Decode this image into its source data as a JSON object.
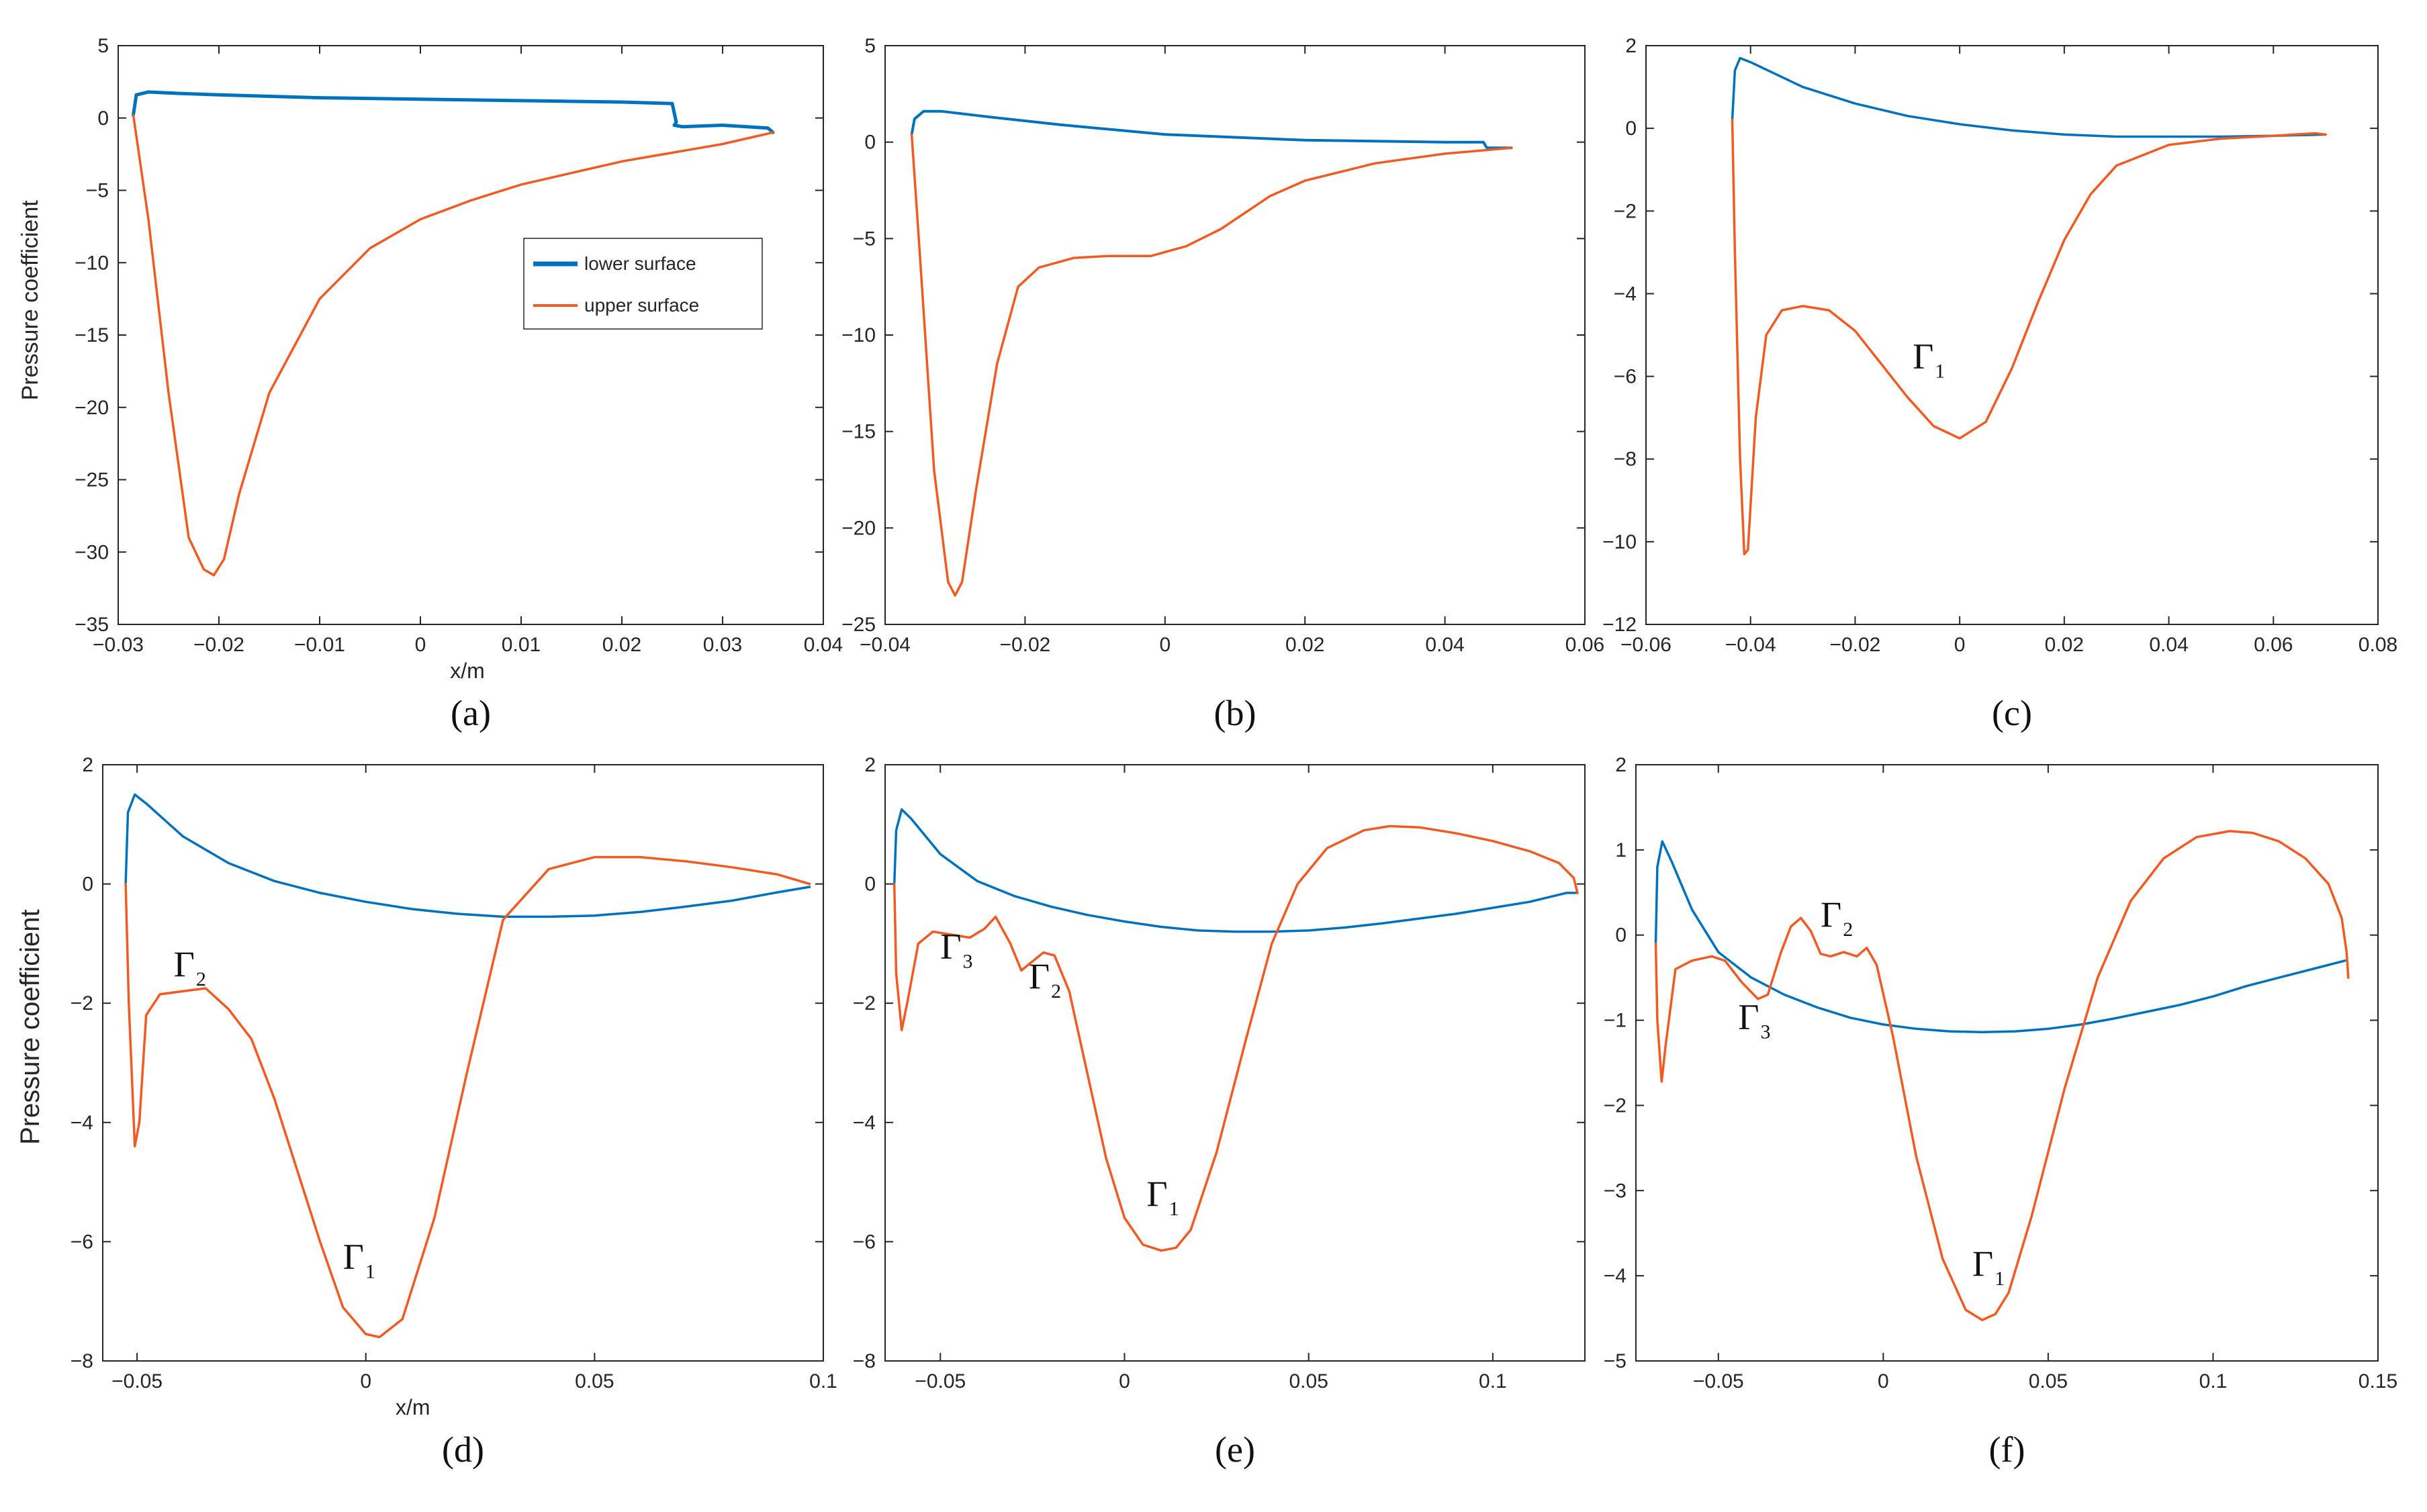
{
  "colors": {
    "lower": "#0072BD",
    "upper": "#F15A22",
    "axis": "#262626"
  },
  "chart_data": [
    {
      "id": "a",
      "type": "line",
      "panel_label": "(a)",
      "xlabel": "x/m",
      "ylabel": "Pressure coefficient",
      "xlim": [
        -0.03,
        0.04
      ],
      "ylim": [
        -35,
        5
      ],
      "xticks": [
        -0.03,
        -0.02,
        -0.01,
        0,
        0.01,
        0.02,
        0.03,
        0.04
      ],
      "xtick_labels": [
        "-0.03",
        "-0.02",
        "-0.01",
        "0",
        "0.01",
        "0.02",
        "0.03",
        "0.04"
      ],
      "yticks": [
        5,
        0,
        -5,
        -10,
        -15,
        -20,
        -25,
        -30,
        -35
      ],
      "ytick_labels": [
        "5",
        "0",
        "-5",
        "-10",
        "-15",
        "-20",
        "-25",
        "-30",
        "-35"
      ],
      "legend": [
        "lower surface",
        "upper surface"
      ],
      "series": [
        {
          "name": "lower surface",
          "color": "lower",
          "width": 5,
          "x": [
            -0.0285,
            -0.0282,
            -0.027,
            -0.024,
            -0.02,
            -0.01,
            0,
            0.01,
            0.02,
            0.025,
            0.0254,
            0.0252,
            0.026,
            0.03,
            0.0345,
            0.035
          ],
          "y": [
            0.2,
            1.6,
            1.8,
            1.7,
            1.6,
            1.4,
            1.3,
            1.2,
            1.1,
            1.0,
            -0.3,
            -0.5,
            -0.6,
            -0.5,
            -0.7,
            -1.0
          ]
        },
        {
          "name": "upper surface",
          "color": "upper",
          "width": 3.5,
          "x": [
            -0.0285,
            -0.027,
            -0.025,
            -0.023,
            -0.0215,
            -0.0205,
            -0.0195,
            -0.018,
            -0.015,
            -0.01,
            -0.005,
            0,
            0.005,
            0.01,
            0.02,
            0.03,
            0.035
          ],
          "y": [
            0.2,
            -7,
            -19,
            -29,
            -31.2,
            -31.6,
            -30.5,
            -26,
            -19,
            -12.5,
            -9,
            -7,
            -5.7,
            -4.6,
            -3,
            -1.8,
            -1.0
          ]
        }
      ]
    },
    {
      "id": "b",
      "type": "line",
      "panel_label": "(b)",
      "xlabel": "",
      "ylabel": "",
      "xlim": [
        -0.04,
        0.06
      ],
      "ylim": [
        -25,
        5
      ],
      "xticks": [
        -0.04,
        -0.02,
        0,
        0.02,
        0.04,
        0.06
      ],
      "xtick_labels": [
        "-0.04",
        "-0.02",
        "0",
        "0.02",
        "0.04",
        "0.06"
      ],
      "yticks": [
        5,
        0,
        -5,
        -10,
        -15,
        -20,
        -25
      ],
      "ytick_labels": [
        "5",
        "0",
        "-5",
        "-10",
        "-15",
        "-20",
        "-25"
      ],
      "series": [
        {
          "name": "lower surface",
          "color": "lower",
          "width": 4,
          "x": [
            -0.0362,
            -0.0358,
            -0.0345,
            -0.032,
            -0.025,
            -0.015,
            0,
            0.02,
            0.04,
            0.0455,
            0.046,
            0.0495
          ],
          "y": [
            0.4,
            1.2,
            1.6,
            1.6,
            1.3,
            0.9,
            0.4,
            0.1,
            0.0,
            0.0,
            -0.3,
            -0.3
          ]
        },
        {
          "name": "upper surface",
          "color": "upper",
          "width": 3.5,
          "x": [
            -0.0362,
            -0.035,
            -0.033,
            -0.031,
            -0.03,
            -0.029,
            -0.027,
            -0.024,
            -0.021,
            -0.018,
            -0.013,
            -0.008,
            -0.002,
            0.003,
            0.008,
            0.015,
            0.02,
            0.03,
            0.04,
            0.0495
          ],
          "y": [
            0.4,
            -6,
            -17,
            -22.8,
            -23.5,
            -22.8,
            -18,
            -11.5,
            -7.5,
            -6.5,
            -6.0,
            -5.9,
            -5.9,
            -5.4,
            -4.5,
            -2.8,
            -2.0,
            -1.1,
            -0.6,
            -0.3
          ]
        }
      ]
    },
    {
      "id": "c",
      "type": "line",
      "panel_label": "(c)",
      "xlabel": "",
      "ylabel": "",
      "xlim": [
        -0.06,
        0.08
      ],
      "ylim": [
        -12,
        2
      ],
      "xticks": [
        -0.06,
        -0.04,
        -0.02,
        0,
        0.02,
        0.04,
        0.06,
        0.08
      ],
      "xtick_labels": [
        "-0.06",
        "-0.04",
        "-0.02",
        "0",
        "0.02",
        "0.04",
        "0.06",
        "0.08"
      ],
      "yticks": [
        2,
        0,
        -2,
        -4,
        -6,
        -8,
        -10,
        -12
      ],
      "ytick_labels": [
        "2",
        "0",
        "-2",
        "-4",
        "-6",
        "-8",
        "-10",
        "-12"
      ],
      "annotations": [
        {
          "label": "Γ",
          "sub": "1",
          "x": -0.009,
          "y": -5.8
        }
      ],
      "series": [
        {
          "name": "lower surface",
          "color": "lower",
          "width": 3.5,
          "x": [
            -0.0435,
            -0.043,
            -0.042,
            -0.04,
            -0.035,
            -0.03,
            -0.02,
            -0.01,
            0,
            0.01,
            0.02,
            0.03,
            0.04,
            0.05,
            0.06,
            0.07
          ],
          "y": [
            0.2,
            1.4,
            1.7,
            1.6,
            1.3,
            1.0,
            0.6,
            0.3,
            0.1,
            -0.05,
            -0.15,
            -0.2,
            -0.2,
            -0.2,
            -0.18,
            -0.15
          ]
        },
        {
          "name": "upper surface",
          "color": "upper",
          "width": 3.5,
          "x": [
            -0.0435,
            -0.043,
            -0.042,
            -0.0412,
            -0.0405,
            -0.039,
            -0.037,
            -0.034,
            -0.03,
            -0.025,
            -0.02,
            -0.015,
            -0.01,
            -0.005,
            0,
            0.005,
            0.01,
            0.015,
            0.02,
            0.025,
            0.03,
            0.04,
            0.05,
            0.06,
            0.068,
            0.07
          ],
          "y": [
            0.2,
            -3,
            -8,
            -10.3,
            -10.2,
            -7,
            -5,
            -4.4,
            -4.3,
            -4.4,
            -4.9,
            -5.7,
            -6.5,
            -7.2,
            -7.5,
            -7.1,
            -5.8,
            -4.2,
            -2.7,
            -1.6,
            -0.9,
            -0.4,
            -0.25,
            -0.18,
            -0.12,
            -0.15
          ]
        }
      ]
    },
    {
      "id": "d",
      "type": "line",
      "panel_label": "(d)",
      "xlabel": "x/m",
      "ylabel": "Pressure coefficient",
      "xlim": [
        -0.0575,
        0.1
      ],
      "ylim": [
        -8,
        2
      ],
      "xticks": [
        -0.05,
        0,
        0.05,
        0.1
      ],
      "xtick_labels": [
        "-0.05",
        "0",
        "0.05",
        "0.1"
      ],
      "yticks": [
        2,
        0,
        -2,
        -4,
        -6,
        -8
      ],
      "ytick_labels": [
        "2",
        "0",
        "-2",
        "-4",
        "-6",
        "-8"
      ],
      "annotations": [
        {
          "label": "Γ",
          "sub": "2",
          "x": -0.042,
          "y": -1.55
        },
        {
          "label": "Γ",
          "sub": "1",
          "x": -0.005,
          "y": -6.45
        }
      ],
      "series": [
        {
          "name": "lower surface",
          "color": "lower",
          "width": 3.5,
          "x": [
            -0.0525,
            -0.052,
            -0.0505,
            -0.048,
            -0.04,
            -0.03,
            -0.02,
            -0.01,
            0,
            0.01,
            0.02,
            0.03,
            0.04,
            0.05,
            0.06,
            0.07,
            0.08,
            0.09,
            0.097
          ],
          "y": [
            0.0,
            1.2,
            1.5,
            1.35,
            0.8,
            0.35,
            0.05,
            -0.15,
            -0.3,
            -0.42,
            -0.5,
            -0.55,
            -0.55,
            -0.53,
            -0.47,
            -0.38,
            -0.28,
            -0.14,
            -0.05
          ]
        },
        {
          "name": "upper surface",
          "color": "upper",
          "width": 3.5,
          "x": [
            -0.0525,
            -0.0518,
            -0.0505,
            -0.0495,
            -0.048,
            -0.045,
            -0.04,
            -0.035,
            -0.03,
            -0.025,
            -0.02,
            -0.015,
            -0.01,
            -0.005,
            0,
            0.003,
            0.008,
            0.015,
            0.022,
            0.03,
            0.04,
            0.05,
            0.06,
            0.07,
            0.08,
            0.09,
            0.097
          ],
          "y": [
            0.0,
            -2.0,
            -4.4,
            -4.0,
            -2.2,
            -1.85,
            -1.8,
            -1.75,
            -2.1,
            -2.6,
            -3.6,
            -4.8,
            -6.0,
            -7.1,
            -7.55,
            -7.6,
            -7.3,
            -5.6,
            -3.2,
            -0.6,
            0.25,
            0.45,
            0.45,
            0.38,
            0.28,
            0.16,
            0.0
          ]
        }
      ]
    },
    {
      "id": "e",
      "type": "line",
      "panel_label": "(e)",
      "xlabel": "",
      "ylabel": "",
      "xlim": [
        -0.065,
        0.125
      ],
      "ylim": [
        -8,
        2
      ],
      "xticks": [
        -0.05,
        0,
        0.05,
        0.1
      ],
      "xtick_labels": [
        "-0.05",
        "0",
        "0.05",
        "0.1"
      ],
      "yticks": [
        2,
        0,
        -2,
        -4,
        -6,
        -8
      ],
      "ytick_labels": [
        "2",
        "0",
        "-2",
        "-4",
        "-6",
        "-8"
      ],
      "annotations": [
        {
          "label": "Γ",
          "sub": "3",
          "x": -0.05,
          "y": -1.25
        },
        {
          "label": "Γ",
          "sub": "2",
          "x": -0.026,
          "y": -1.75
        },
        {
          "label": "Γ",
          "sub": "1",
          "x": 0.006,
          "y": -5.4
        }
      ],
      "series": [
        {
          "name": "lower surface",
          "color": "lower",
          "width": 3.5,
          "x": [
            -0.0625,
            -0.062,
            -0.0605,
            -0.058,
            -0.05,
            -0.04,
            -0.03,
            -0.02,
            -0.01,
            0,
            0.01,
            0.02,
            0.03,
            0.04,
            0.05,
            0.06,
            0.07,
            0.08,
            0.09,
            0.1,
            0.11,
            0.12,
            0.123
          ],
          "y": [
            0.0,
            0.9,
            1.25,
            1.1,
            0.5,
            0.05,
            -0.2,
            -0.38,
            -0.52,
            -0.63,
            -0.72,
            -0.78,
            -0.8,
            -0.8,
            -0.78,
            -0.73,
            -0.66,
            -0.58,
            -0.5,
            -0.4,
            -0.3,
            -0.15,
            -0.15
          ]
        },
        {
          "name": "upper surface",
          "color": "upper",
          "width": 3.5,
          "x": [
            -0.0625,
            -0.062,
            -0.0605,
            -0.059,
            -0.056,
            -0.052,
            -0.047,
            -0.042,
            -0.038,
            -0.035,
            -0.031,
            -0.028,
            -0.025,
            -0.022,
            -0.019,
            -0.015,
            -0.01,
            -0.005,
            0,
            0.005,
            0.01,
            0.014,
            0.018,
            0.025,
            0.033,
            0.04,
            0.047,
            0.055,
            0.065,
            0.072,
            0.08,
            0.09,
            0.1,
            0.11,
            0.118,
            0.122,
            0.123
          ],
          "y": [
            0.0,
            -1.5,
            -2.45,
            -2.0,
            -1.0,
            -0.8,
            -0.85,
            -0.9,
            -0.75,
            -0.55,
            -1.0,
            -1.45,
            -1.3,
            -1.15,
            -1.2,
            -1.8,
            -3.2,
            -4.6,
            -5.6,
            -6.05,
            -6.15,
            -6.1,
            -5.8,
            -4.5,
            -2.6,
            -1.0,
            0.0,
            0.6,
            0.9,
            0.97,
            0.95,
            0.85,
            0.72,
            0.55,
            0.35,
            0.1,
            -0.15
          ]
        }
      ]
    },
    {
      "id": "f",
      "type": "line",
      "panel_label": "(f)",
      "xlabel": "",
      "ylabel": "",
      "xlim": [
        -0.075,
        0.15
      ],
      "ylim": [
        -5,
        2
      ],
      "xticks": [
        -0.05,
        0,
        0.05,
        0.1,
        0.15
      ],
      "xtick_labels": [
        "-0.05",
        "0",
        "0.05",
        "0.1",
        "0.15"
      ],
      "yticks": [
        2,
        1,
        0,
        -1,
        -2,
        -3,
        -4,
        -5
      ],
      "ytick_labels": [
        "2",
        "1",
        "0",
        "-1",
        "-2",
        "-3",
        "-4",
        "-5"
      ],
      "annotations": [
        {
          "label": "Γ",
          "sub": "3",
          "x": -0.044,
          "y": -1.1
        },
        {
          "label": "Γ",
          "sub": "2",
          "x": -0.019,
          "y": 0.1
        },
        {
          "label": "Γ",
          "sub": "1",
          "x": 0.027,
          "y": -4.0
        }
      ],
      "series": [
        {
          "name": "lower surface",
          "color": "lower",
          "width": 3.5,
          "x": [
            -0.069,
            -0.0685,
            -0.067,
            -0.064,
            -0.058,
            -0.05,
            -0.04,
            -0.03,
            -0.02,
            -0.01,
            0,
            0.01,
            0.02,
            0.03,
            0.04,
            0.05,
            0.06,
            0.07,
            0.08,
            0.09,
            0.1,
            0.11,
            0.12,
            0.13,
            0.14
          ],
          "y": [
            -0.1,
            0.8,
            1.1,
            0.85,
            0.3,
            -0.2,
            -0.5,
            -0.7,
            -0.85,
            -0.97,
            -1.05,
            -1.1,
            -1.13,
            -1.14,
            -1.13,
            -1.1,
            -1.05,
            -0.98,
            -0.9,
            -0.82,
            -0.72,
            -0.6,
            -0.5,
            -0.4,
            -0.3
          ]
        },
        {
          "name": "upper surface",
          "color": "upper",
          "width": 3.5,
          "x": [
            -0.069,
            -0.0685,
            -0.0672,
            -0.066,
            -0.063,
            -0.058,
            -0.052,
            -0.048,
            -0.043,
            -0.038,
            -0.035,
            -0.031,
            -0.028,
            -0.025,
            -0.022,
            -0.019,
            -0.016,
            -0.012,
            -0.008,
            -0.005,
            -0.002,
            0.003,
            0.01,
            0.018,
            0.025,
            0.03,
            0.034,
            0.038,
            0.045,
            0.055,
            0.065,
            0.075,
            0.085,
            0.095,
            0.105,
            0.112,
            0.12,
            0.128,
            0.135,
            0.139,
            0.1405,
            0.141
          ],
          "y": [
            -0.1,
            -1.0,
            -1.72,
            -1.3,
            -0.4,
            -0.3,
            -0.25,
            -0.3,
            -0.55,
            -0.75,
            -0.7,
            -0.2,
            0.1,
            0.2,
            0.05,
            -0.22,
            -0.25,
            -0.2,
            -0.25,
            -0.15,
            -0.35,
            -1.2,
            -2.6,
            -3.8,
            -4.4,
            -4.52,
            -4.45,
            -4.2,
            -3.3,
            -1.8,
            -0.5,
            0.4,
            0.9,
            1.15,
            1.22,
            1.2,
            1.1,
            0.9,
            0.6,
            0.2,
            -0.2,
            -0.5
          ]
        }
      ]
    }
  ]
}
